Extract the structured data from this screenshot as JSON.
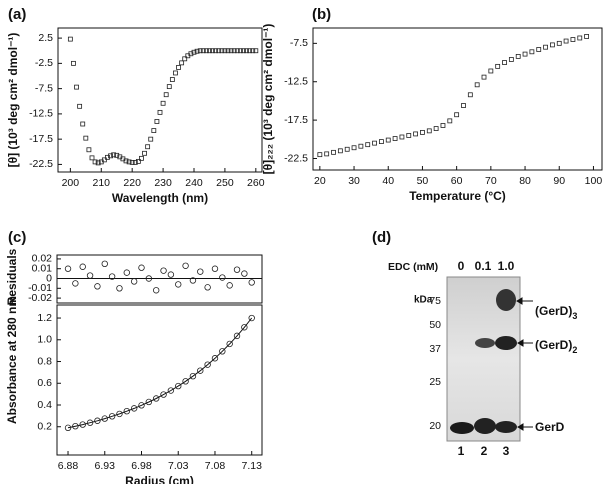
{
  "chart_data": [
    {
      "type": "scatter",
      "panel": "(a)",
      "marker": "square",
      "color": "#222222",
      "xlabel": "Wavelength (nm)",
      "ylabel": "[θ] (10³ deg cm² dmol⁻¹)",
      "xlim": [
        196,
        262
      ],
      "ylim": [
        -24,
        4.5
      ],
      "xticks": [
        200,
        210,
        220,
        230,
        240,
        250,
        260
      ],
      "yticks": [
        2.5,
        -2.5,
        -7.5,
        -12.5,
        -17.5,
        -22.5
      ],
      "x": [
        200,
        201,
        202,
        203,
        204,
        205,
        206,
        207,
        208,
        209,
        210,
        211,
        212,
        213,
        214,
        215,
        216,
        217,
        218,
        219,
        220,
        221,
        222,
        223,
        224,
        225,
        226,
        227,
        228,
        229,
        230,
        231,
        232,
        233,
        234,
        235,
        236,
        237,
        238,
        239,
        240,
        241,
        242,
        243,
        244,
        245,
        246,
        247,
        248,
        249,
        250,
        251,
        252,
        253,
        254,
        255,
        256,
        257,
        258,
        259,
        260
      ],
      "values": [
        2.3,
        -2.5,
        -7.2,
        -11,
        -14.5,
        -17.3,
        -19.6,
        -21.2,
        -22,
        -22.2,
        -22,
        -21.6,
        -21.1,
        -20.8,
        -20.6,
        -20.7,
        -21,
        -21.4,
        -21.8,
        -22,
        -22.1,
        -22.1,
        -21.9,
        -21.3,
        -20.3,
        -19,
        -17.5,
        -15.8,
        -14,
        -12.2,
        -10.4,
        -8.7,
        -7.1,
        -5.7,
        -4.4,
        -3.3,
        -2.4,
        -1.6,
        -1,
        -0.6,
        -0.3,
        -0.1,
        0,
        0,
        0,
        0,
        0,
        0,
        0,
        0,
        0,
        0,
        0,
        0,
        0,
        0,
        0,
        0,
        0,
        0,
        0
      ]
    },
    {
      "type": "scatter",
      "panel": "(b)",
      "marker": "square",
      "color": "#222222",
      "xlabel": "Temperature (°C)",
      "ylabel": "[θ]₂₂₂ (10³ deg cm² dmol⁻¹)",
      "xlim": [
        18,
        102.5
      ],
      "ylim": [
        -24,
        -5.5
      ],
      "xticks": [
        20,
        30,
        40,
        50,
        60,
        70,
        80,
        90,
        100
      ],
      "yticks": [
        -7.5,
        -12.5,
        -17.5,
        -22.5
      ],
      "x": [
        20,
        22,
        24,
        26,
        28,
        30,
        32,
        34,
        36,
        38,
        40,
        42,
        44,
        46,
        48,
        50,
        52,
        54,
        56,
        58,
        60,
        62,
        64,
        66,
        68,
        70,
        72,
        74,
        76,
        78,
        80,
        82,
        84,
        86,
        88,
        90,
        92,
        94,
        96,
        98
      ],
      "values": [
        -22,
        -21.9,
        -21.7,
        -21.5,
        -21.3,
        -21.1,
        -20.9,
        -20.7,
        -20.5,
        -20.3,
        -20.1,
        -19.9,
        -19.7,
        -19.5,
        -19.3,
        -19.1,
        -18.9,
        -18.6,
        -18.2,
        -17.6,
        -16.8,
        -15.6,
        -14.2,
        -12.9,
        -11.9,
        -11.1,
        -10.5,
        -10,
        -9.6,
        -9.2,
        -8.9,
        -8.6,
        -8.3,
        -8,
        -7.7,
        -7.5,
        -7.2,
        -7,
        -6.8,
        -6.6
      ]
    },
    {
      "type": "scatter",
      "panel": "(c)",
      "marker": "circle",
      "color": "#222222",
      "zero_line": true,
      "ylabel": "Residuals",
      "xlim": [
        6.865,
        7.144
      ],
      "ylim": [
        -0.025,
        0.024
      ],
      "yticks": [
        0.02,
        0.01,
        0,
        -0.01,
        -0.02
      ],
      "x": [
        6.88,
        6.89,
        6.9,
        6.91,
        6.92,
        6.93,
        6.94,
        6.95,
        6.96,
        6.97,
        6.98,
        6.99,
        7,
        7.01,
        7.02,
        7.03,
        7.04,
        7.05,
        7.06,
        7.07,
        7.08,
        7.09,
        7.1,
        7.11,
        7.12,
        7.13
      ],
      "values": [
        0.01,
        -0.005,
        0.012,
        0.003,
        -0.008,
        0.015,
        0.002,
        -0.01,
        0.006,
        -0.003,
        0.011,
        0,
        -0.012,
        0.008,
        0.004,
        -0.006,
        0.013,
        -0.002,
        0.007,
        -0.009,
        0.01,
        0.001,
        -0.007,
        0.009,
        0.005,
        -0.004
      ]
    },
    {
      "type": "scatter",
      "marker": "circle",
      "color": "#222222",
      "fit_line": true,
      "xlabel": "Radius (cm)",
      "ylabel": "Absorbance at 280 nm",
      "xlim": [
        6.865,
        7.144
      ],
      "ylim": [
        -0.06,
        1.32
      ],
      "xticks": [
        6.88,
        6.93,
        6.98,
        7.03,
        7.08,
        7.13
      ],
      "yticks": [
        0.2,
        0.4,
        0.6,
        0.8,
        {
          "value": 1,
          "label": "1.0"
        },
        1.2
      ],
      "x": [
        6.88,
        6.89,
        6.9,
        6.91,
        6.92,
        6.93,
        6.94,
        6.95,
        6.96,
        6.97,
        6.98,
        6.99,
        7,
        7.01,
        7.02,
        7.03,
        7.04,
        7.05,
        7.06,
        7.07,
        7.08,
        7.09,
        7.1,
        7.11,
        7.12,
        7.13
      ],
      "values": [
        0.19,
        0.205,
        0.22,
        0.237,
        0.255,
        0.275,
        0.296,
        0.318,
        0.343,
        0.369,
        0.397,
        0.428,
        0.46,
        0.496,
        0.533,
        0.574,
        0.618,
        0.665,
        0.716,
        0.771,
        0.83,
        0.894,
        0.962,
        1.036,
        1.115,
        1.2
      ]
    }
  ],
  "gel": {
    "panel": "(d)",
    "treatment_label": "EDC (mM)",
    "lanes": [
      "0",
      "0.1",
      "1.0"
    ],
    "lane_numbers": [
      "1",
      "2",
      "3"
    ],
    "unit": "kDa",
    "markers": [
      "75",
      "50",
      "37",
      "25",
      "20"
    ],
    "bands": [
      {
        "name": "(GerD)",
        "subscript": "3"
      },
      {
        "name": "(GerD)",
        "subscript": "2"
      },
      {
        "name": "GerD"
      }
    ]
  }
}
